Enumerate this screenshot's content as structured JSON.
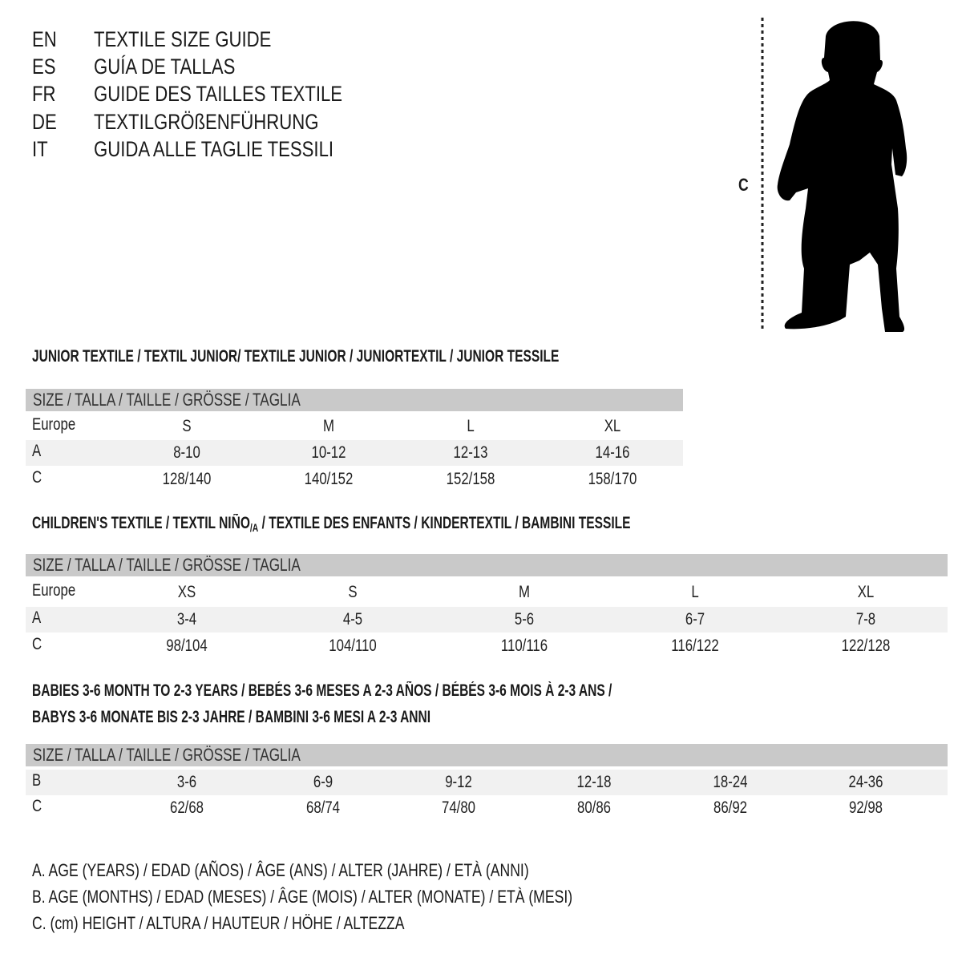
{
  "titles": [
    {
      "code": "EN",
      "text": "TEXTILE SIZE GUIDE"
    },
    {
      "code": "ES",
      "text": "GUÍA DE TALLAS"
    },
    {
      "code": "FR",
      "text": "GUIDE DES TAILLES TEXTILE"
    },
    {
      "code": "DE",
      "text": "TEXTILGRÖßENFÜHRUNG"
    },
    {
      "code": "IT",
      "text": "GUIDA ALLE TAGLIE TESSILI"
    }
  ],
  "figure": {
    "label": "C",
    "icon": "child-silhouette-icon"
  },
  "size_header": "SIZE / TALLA / TAILLE / GRÖSSE / TAGLIA",
  "junior": {
    "title": "JUNIOR TEXTILE / TEXTIL JUNIOR/ TEXTILE JUNIOR / JUNIORTEXTIL / JUNIOR TESSILE",
    "rows": [
      {
        "label": "Europe",
        "values": [
          "S",
          "M",
          "L",
          "XL"
        ]
      },
      {
        "label": "A",
        "values": [
          "8-10",
          "10-12",
          "12-13",
          "14-16"
        ]
      },
      {
        "label": "C",
        "values": [
          "128/140",
          "140/152",
          "152/158",
          "158/170"
        ]
      }
    ]
  },
  "children": {
    "title_main": "CHILDREN'S TEXTILE / TEXTIL NIÑO",
    "title_sub": "/A",
    "title_rest": " / TEXTILE DES ENFANTS / KINDERTEXTIL / BAMBINI TESSILE",
    "rows": [
      {
        "label": "Europe",
        "values": [
          "XS",
          "S",
          "M",
          "L",
          "XL"
        ]
      },
      {
        "label": "A",
        "values": [
          "3-4",
          "4-5",
          "5-6",
          "6-7",
          "7-8"
        ]
      },
      {
        "label": "C",
        "values": [
          "98/104",
          "104/110",
          "110/116",
          "116/122",
          "122/128"
        ]
      }
    ]
  },
  "babies": {
    "title_line1": "BABIES 3-6 MONTH TO 2-3 YEARS / BEBÉS 3-6 MESES A 2-3 AÑOS / BÉBÉS 3-6 MOIS À 2-3 ANS /",
    "title_line2": "BABYS 3-6 MONATE BIS 2-3 JAHRE / BAMBINI 3-6 MESI A 2-3 ANNI",
    "rows": [
      {
        "label": "B",
        "values": [
          "3-6",
          "6-9",
          "9-12",
          "12-18",
          "18-24",
          "24-36"
        ]
      },
      {
        "label": "C",
        "values": [
          "62/68",
          "68/74",
          "74/80",
          "80/86",
          "86/92",
          "92/98"
        ]
      }
    ]
  },
  "legend": [
    "A. AGE (YEARS) / EDAD (AÑOS) / ÂGE (ANS) / ALTER (JAHRE) / ETÀ (ANNI)",
    "B. AGE (MONTHS) / EDAD (MESES) / ÂGE (MOIS) / ALTER (MONATE) / ETÀ (MESI)",
    "C. (cm) HEIGHT / ALTURA / HAUTEUR / HÖHE / ALTEZZA"
  ],
  "colors": {
    "header_bar": "#c9c9c9",
    "stripe": "#f1f1f1",
    "text": "#1a1a1a"
  }
}
